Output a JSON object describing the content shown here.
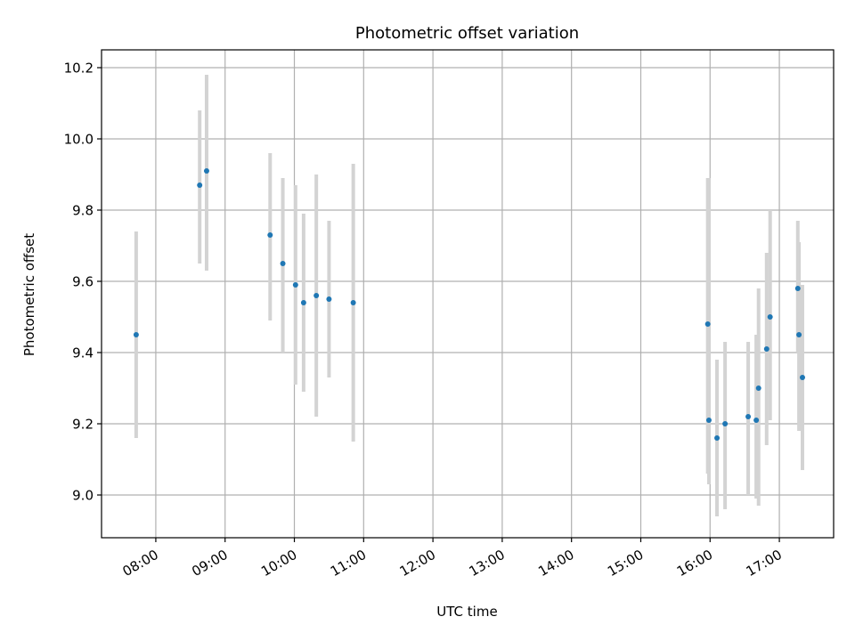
{
  "chart_data": {
    "type": "scatter",
    "title": "Photometric offset variation",
    "xlabel": "UTC time",
    "ylabel": "Photometric offset",
    "grid": true,
    "x_tick_labels": [
      "08:00",
      "09:00",
      "10:00",
      "11:00",
      "12:00",
      "13:00",
      "14:00",
      "15:00",
      "16:00",
      "17:00"
    ],
    "y_tick_labels": [
      "9.0",
      "9.2",
      "9.4",
      "9.6",
      "9.8",
      "10.0",
      "10.2"
    ],
    "x_time_range": [
      "07:13",
      "17:47"
    ],
    "ylim": [
      8.88,
      10.25
    ],
    "colors": {
      "point": "#1f77b4",
      "errorbar": "#d3d3d3",
      "grid": "#b0b0b0"
    },
    "points": [
      {
        "t": "07:43",
        "y": 9.45,
        "lo": 9.16,
        "hi": 9.74
      },
      {
        "t": "08:38",
        "y": 9.87,
        "lo": 9.65,
        "hi": 10.08
      },
      {
        "t": "08:44",
        "y": 9.91,
        "lo": 9.63,
        "hi": 10.18
      },
      {
        "t": "09:39",
        "y": 9.73,
        "lo": 9.49,
        "hi": 9.96
      },
      {
        "t": "09:50",
        "y": 9.65,
        "lo": 9.4,
        "hi": 9.89
      },
      {
        "t": "10:01",
        "y": 9.59,
        "lo": 9.31,
        "hi": 9.87
      },
      {
        "t": "10:08",
        "y": 9.54,
        "lo": 9.29,
        "hi": 9.79
      },
      {
        "t": "10:19",
        "y": 9.56,
        "lo": 9.22,
        "hi": 9.9
      },
      {
        "t": "10:30",
        "y": 9.55,
        "lo": 9.33,
        "hi": 9.77
      },
      {
        "t": "10:51",
        "y": 9.54,
        "lo": 9.15,
        "hi": 9.93
      },
      {
        "t": "15:58",
        "y": 9.48,
        "lo": 9.06,
        "hi": 9.89
      },
      {
        "t": "15:59",
        "y": 9.21,
        "lo": 9.03,
        "hi": 9.89
      },
      {
        "t": "16:06",
        "y": 9.16,
        "lo": 8.94,
        "hi": 9.38
      },
      {
        "t": "16:13",
        "y": 9.2,
        "lo": 8.96,
        "hi": 9.43
      },
      {
        "t": "16:33",
        "y": 9.22,
        "lo": 9.0,
        "hi": 9.43
      },
      {
        "t": "16:40",
        "y": 9.21,
        "lo": 8.99,
        "hi": 9.45
      },
      {
        "t": "16:42",
        "y": 9.3,
        "lo": 8.97,
        "hi": 9.58
      },
      {
        "t": "16:49",
        "y": 9.41,
        "lo": 9.14,
        "hi": 9.68
      },
      {
        "t": "16:52",
        "y": 9.5,
        "lo": 9.21,
        "hi": 9.8
      },
      {
        "t": "17:16",
        "y": 9.58,
        "lo": 9.4,
        "hi": 9.77
      },
      {
        "t": "17:17",
        "y": 9.45,
        "lo": 9.18,
        "hi": 9.71
      },
      {
        "t": "17:20",
        "y": 9.33,
        "lo": 9.07,
        "hi": 9.59
      }
    ]
  }
}
